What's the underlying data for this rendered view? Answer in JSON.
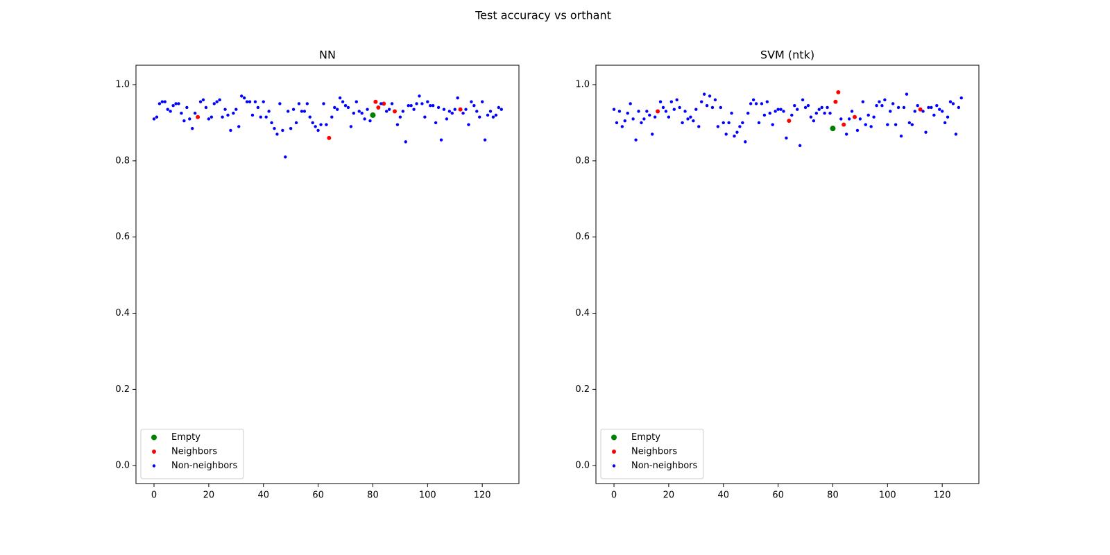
{
  "title": "Test accuracy vs orthant",
  "chart_data": [
    {
      "type": "scatter",
      "title": "NN",
      "xlim": [
        -6.6,
        133.4
      ],
      "ylim": [
        -0.047,
        1.051
      ],
      "xticks": [
        0,
        20,
        40,
        60,
        80,
        100,
        120
      ],
      "yticks": [
        {
          "value": 0,
          "label": "0.0"
        },
        0.2,
        0.4,
        0.6,
        0.8,
        {
          "value": 1,
          "label": "1.0"
        }
      ],
      "legend": "lower left",
      "series": [
        {
          "name": "Empty",
          "color": "#008000",
          "x": [
            80
          ],
          "values": [
            0.92
          ]
        },
        {
          "name": "Neighbors",
          "color": "#ff0000",
          "x": [
            16,
            64,
            81,
            82,
            84,
            88,
            112
          ],
          "values": [
            0.915,
            0.86,
            0.955,
            0.94,
            0.95,
            0.93,
            0.935
          ]
        },
        {
          "name": "Non-neighbors",
          "color": "#0000ff",
          "x": [
            0,
            1,
            2,
            3,
            4,
            5,
            6,
            7,
            8,
            9,
            10,
            11,
            12,
            13,
            14,
            15,
            17,
            18,
            19,
            20,
            21,
            22,
            23,
            24,
            25,
            26,
            27,
            28,
            29,
            30,
            31,
            32,
            33,
            34,
            35,
            36,
            37,
            38,
            39,
            40,
            41,
            42,
            43,
            44,
            45,
            46,
            47,
            48,
            49,
            50,
            51,
            52,
            53,
            54,
            55,
            56,
            57,
            58,
            59,
            60,
            61,
            62,
            63,
            65,
            66,
            67,
            68,
            69,
            70,
            71,
            72,
            73,
            74,
            75,
            76,
            77,
            78,
            79,
            83,
            85,
            86,
            87,
            89,
            90,
            91,
            92,
            93,
            94,
            95,
            96,
            97,
            98,
            99,
            100,
            101,
            102,
            103,
            104,
            105,
            106,
            107,
            108,
            109,
            110,
            111,
            113,
            114,
            115,
            116,
            117,
            118,
            119,
            120,
            121,
            122,
            123,
            124,
            125,
            126,
            127
          ],
          "values": [
            0.91,
            0.915,
            0.95,
            0.955,
            0.955,
            0.935,
            0.93,
            0.945,
            0.95,
            0.95,
            0.925,
            0.905,
            0.94,
            0.91,
            0.885,
            0.925,
            0.955,
            0.96,
            0.94,
            0.91,
            0.915,
            0.95,
            0.955,
            0.96,
            0.915,
            0.935,
            0.92,
            0.88,
            0.925,
            0.935,
            0.89,
            0.97,
            0.965,
            0.955,
            0.955,
            0.92,
            0.955,
            0.94,
            0.915,
            0.955,
            0.915,
            0.93,
            0.9,
            0.885,
            0.87,
            0.95,
            0.88,
            0.81,
            0.93,
            0.885,
            0.935,
            0.9,
            0.95,
            0.93,
            0.93,
            0.95,
            0.915,
            0.9,
            0.89,
            0.88,
            0.895,
            0.95,
            0.895,
            0.915,
            0.94,
            0.935,
            0.965,
            0.955,
            0.945,
            0.94,
            0.89,
            0.925,
            0.955,
            0.93,
            0.925,
            0.91,
            0.935,
            0.905,
            0.95,
            0.93,
            0.935,
            0.95,
            0.895,
            0.915,
            0.93,
            0.85,
            0.945,
            0.945,
            0.935,
            0.95,
            0.97,
            0.95,
            0.915,
            0.955,
            0.945,
            0.945,
            0.9,
            0.94,
            0.855,
            0.935,
            0.91,
            0.93,
            0.925,
            0.935,
            0.965,
            0.925,
            0.935,
            0.895,
            0.955,
            0.945,
            0.93,
            0.915,
            0.955,
            0.855,
            0.92,
            0.93,
            0.915,
            0.92,
            0.94,
            0.935
          ]
        }
      ]
    },
    {
      "type": "scatter",
      "title": "SVM (ntk)",
      "xlim": [
        -6.6,
        133.4
      ],
      "ylim": [
        -0.047,
        1.051
      ],
      "xticks": [
        0,
        20,
        40,
        60,
        80,
        100,
        120
      ],
      "yticks": [
        {
          "value": 0,
          "label": "0.0"
        },
        0.2,
        0.4,
        0.6,
        0.8,
        {
          "value": 1,
          "label": "1.0"
        }
      ],
      "legend": "lower left",
      "series": [
        {
          "name": "Empty",
          "color": "#008000",
          "x": [
            80
          ],
          "values": [
            0.885
          ]
        },
        {
          "name": "Neighbors",
          "color": "#ff0000",
          "x": [
            16,
            64,
            81,
            82,
            84,
            88,
            112
          ],
          "values": [
            0.93,
            0.905,
            0.955,
            0.98,
            0.895,
            0.915,
            0.935
          ]
        },
        {
          "name": "Non-neighbors",
          "color": "#0000ff",
          "x": [
            0,
            1,
            2,
            3,
            4,
            5,
            6,
            7,
            8,
            9,
            10,
            11,
            12,
            13,
            14,
            15,
            17,
            18,
            19,
            20,
            21,
            22,
            23,
            24,
            25,
            26,
            27,
            28,
            29,
            30,
            31,
            32,
            33,
            34,
            35,
            36,
            37,
            38,
            39,
            40,
            41,
            42,
            43,
            44,
            45,
            46,
            47,
            48,
            49,
            50,
            51,
            52,
            53,
            54,
            55,
            56,
            57,
            58,
            59,
            60,
            61,
            62,
            63,
            65,
            66,
            67,
            68,
            69,
            70,
            71,
            72,
            73,
            74,
            75,
            76,
            77,
            78,
            79,
            83,
            85,
            86,
            87,
            89,
            90,
            91,
            92,
            93,
            94,
            95,
            96,
            97,
            98,
            99,
            100,
            101,
            102,
            103,
            104,
            105,
            106,
            107,
            108,
            109,
            110,
            111,
            113,
            114,
            115,
            116,
            117,
            118,
            119,
            120,
            121,
            122,
            123,
            124,
            125,
            126,
            127
          ],
          "values": [
            0.935,
            0.9,
            0.93,
            0.89,
            0.905,
            0.925,
            0.95,
            0.91,
            0.855,
            0.93,
            0.9,
            0.91,
            0.93,
            0.92,
            0.87,
            0.915,
            0.955,
            0.94,
            0.93,
            0.915,
            0.955,
            0.935,
            0.96,
            0.94,
            0.9,
            0.93,
            0.91,
            0.915,
            0.905,
            0.935,
            0.89,
            0.955,
            0.975,
            0.945,
            0.97,
            0.94,
            0.96,
            0.89,
            0.94,
            0.9,
            0.87,
            0.9,
            0.925,
            0.865,
            0.875,
            0.89,
            0.9,
            0.85,
            0.925,
            0.95,
            0.96,
            0.95,
            0.9,
            0.95,
            0.92,
            0.955,
            0.925,
            0.895,
            0.93,
            0.935,
            0.935,
            0.93,
            0.86,
            0.92,
            0.945,
            0.935,
            0.84,
            0.96,
            0.94,
            0.945,
            0.915,
            0.905,
            0.925,
            0.935,
            0.94,
            0.925,
            0.94,
            0.925,
            0.91,
            0.87,
            0.91,
            0.93,
            0.88,
            0.91,
            0.955,
            0.895,
            0.92,
            0.89,
            0.915,
            0.945,
            0.955,
            0.945,
            0.96,
            0.895,
            0.93,
            0.95,
            0.895,
            0.94,
            0.865,
            0.94,
            0.975,
            0.9,
            0.895,
            0.93,
            0.945,
            0.93,
            0.875,
            0.94,
            0.94,
            0.92,
            0.945,
            0.935,
            0.93,
            0.9,
            0.915,
            0.955,
            0.95,
            0.87,
            0.94,
            0.965
          ]
        }
      ]
    }
  ]
}
